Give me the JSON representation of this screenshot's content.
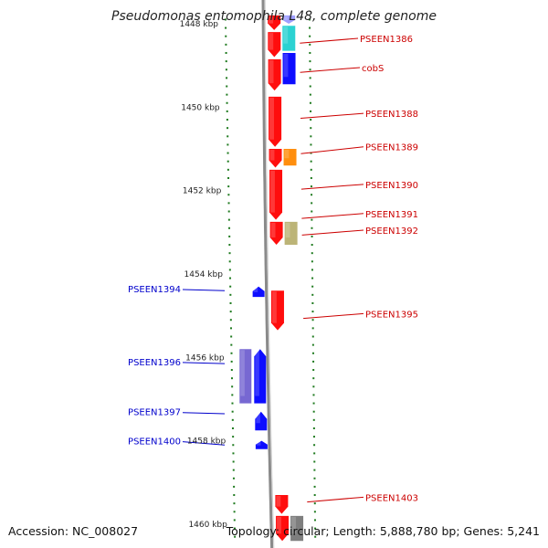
{
  "title": "Pseudomonas entomophila L48, complete genome",
  "footer": {
    "accession": "Accession: NC_008027",
    "topology": "Topology: circular; Length: 5,888,780 bp; Genes: 5,241"
  },
  "colors": {
    "backbone": "#8a8a8a",
    "tick": "#1e7a1e",
    "forward_label": "#cc0000",
    "reverse_label": "#0000cc",
    "red": "#ff0000",
    "blue": "#0000ff",
    "cyan": "#20d0d0",
    "orange": "#ff8800",
    "khaki": "#b8b070",
    "purple": "#7060d0",
    "gray": "#777777",
    "lightblue": "#9999ff"
  },
  "axis": {
    "unit": "kbp",
    "top_kbp": 1447.9,
    "bottom_kbp": 1460.3,
    "ticks": [
      {
        "label": "1448 kbp",
        "kbp": 1448
      },
      {
        "label": "1450 kbp",
        "kbp": 1450
      },
      {
        "label": "1452 kbp",
        "kbp": 1452
      },
      {
        "label": "1454 kbp",
        "kbp": 1454
      },
      {
        "label": "1456 kbp",
        "kbp": 1456
      },
      {
        "label": "1458 kbp",
        "kbp": 1458
      },
      {
        "label": "1460 kbp",
        "kbp": 1460
      }
    ]
  },
  "features": [
    {
      "track": "fwd1",
      "start": 1447.8,
      "end": 1448.15,
      "color": "red",
      "dir": 1
    },
    {
      "track": "fwd1",
      "start": 1448.2,
      "end": 1448.8,
      "color": "red",
      "dir": 1
    },
    {
      "track": "fwd1",
      "start": 1448.85,
      "end": 1449.6,
      "color": "red",
      "dir": 1
    },
    {
      "track": "fwd1",
      "start": 1449.75,
      "end": 1450.95,
      "color": "red",
      "dir": 1
    },
    {
      "track": "fwd1",
      "start": 1451.0,
      "end": 1451.45,
      "color": "red",
      "dir": 1
    },
    {
      "track": "fwd1",
      "start": 1451.5,
      "end": 1452.7,
      "color": "red",
      "dir": 1
    },
    {
      "track": "fwd1",
      "start": 1452.75,
      "end": 1453.3,
      "color": "red",
      "dir": 1
    },
    {
      "track": "fwd1",
      "start": 1454.4,
      "end": 1455.35,
      "color": "red",
      "dir": 1
    },
    {
      "track": "fwd1",
      "start": 1459.3,
      "end": 1459.75,
      "color": "red",
      "dir": 1
    },
    {
      "track": "fwd1",
      "start": 1459.8,
      "end": 1460.4,
      "color": "red",
      "dir": 1
    },
    {
      "track": "fwd2",
      "start": 1447.8,
      "end": 1448.0,
      "color": "lightblue",
      "dir": 1
    },
    {
      "track": "fwd2",
      "start": 1448.05,
      "end": 1448.65,
      "color": "cyan",
      "dir": 0
    },
    {
      "track": "fwd2",
      "start": 1448.7,
      "end": 1449.45,
      "color": "blue",
      "dir": 0
    },
    {
      "track": "fwd2",
      "start": 1451.0,
      "end": 1451.4,
      "color": "orange",
      "dir": 0
    },
    {
      "track": "fwd2",
      "start": 1452.75,
      "end": 1453.3,
      "color": "khaki",
      "dir": 0
    },
    {
      "track": "fwd2",
      "start": 1459.8,
      "end": 1460.4,
      "color": "gray",
      "dir": 0
    },
    {
      "track": "rev1",
      "start": 1454.3,
      "end": 1454.55,
      "color": "blue",
      "dir": -1
    },
    {
      "track": "rev1",
      "start": 1455.8,
      "end": 1457.1,
      "color": "blue",
      "dir": -1
    },
    {
      "track": "rev1",
      "start": 1457.3,
      "end": 1457.75,
      "color": "blue",
      "dir": -1
    },
    {
      "track": "rev1",
      "start": 1458.0,
      "end": 1458.2,
      "color": "blue",
      "dir": -1
    },
    {
      "track": "rev2",
      "start": 1455.8,
      "end": 1457.1,
      "color": "purple",
      "dir": 0
    }
  ],
  "labels": [
    {
      "text": "PSEEN1386",
      "side": "right",
      "kbp": 1448.35,
      "target_kbp": 1448.4
    },
    {
      "text": "cobS",
      "side": "right",
      "kbp": 1449.05,
      "target_kbp": 1449.1
    },
    {
      "text": "PSEEN1388",
      "side": "right",
      "kbp": 1450.15,
      "target_kbp": 1450.2
    },
    {
      "text": "PSEEN1389",
      "side": "right",
      "kbp": 1450.95,
      "target_kbp": 1451.05
    },
    {
      "text": "PSEEN1390",
      "side": "right",
      "kbp": 1451.85,
      "target_kbp": 1451.9
    },
    {
      "text": "PSEEN1391",
      "side": "right",
      "kbp": 1452.55,
      "target_kbp": 1452.6
    },
    {
      "text": "PSEEN1392",
      "side": "right",
      "kbp": 1452.95,
      "target_kbp": 1453.0
    },
    {
      "text": "PSEEN1394",
      "side": "left",
      "kbp": 1454.35,
      "target_kbp": 1454.4
    },
    {
      "text": "PSEEN1395",
      "side": "right",
      "kbp": 1454.95,
      "target_kbp": 1455.0
    },
    {
      "text": "PSEEN1396",
      "side": "left",
      "kbp": 1456.1,
      "target_kbp": 1456.15
    },
    {
      "text": "PSEEN1397",
      "side": "left",
      "kbp": 1457.3,
      "target_kbp": 1457.35
    },
    {
      "text": "PSEEN1400",
      "side": "left",
      "kbp": 1458.0,
      "target_kbp": 1458.1
    },
    {
      "text": "PSEEN1403",
      "side": "right",
      "kbp": 1459.35,
      "target_kbp": 1459.4
    }
  ]
}
